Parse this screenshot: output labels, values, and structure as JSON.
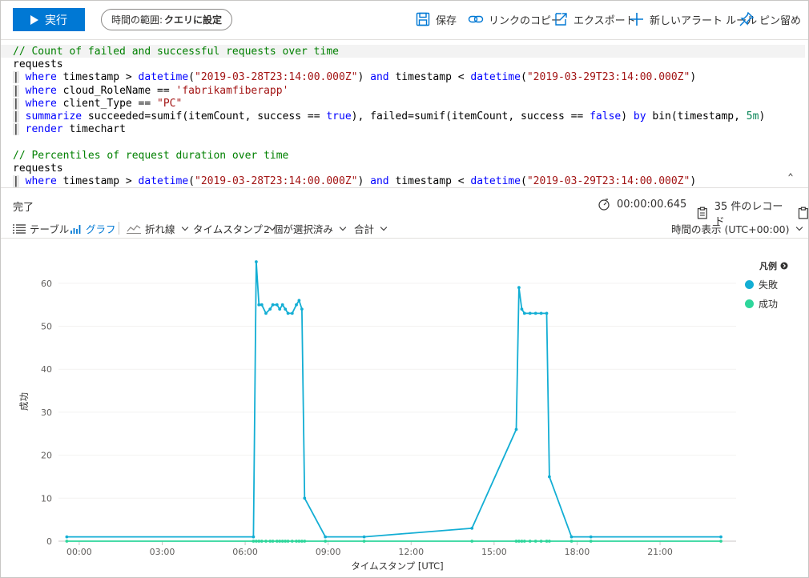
{
  "toolbar": {
    "run_label": "実行",
    "time_range_prefix": "時間の範囲:",
    "time_range_value": "クエリに設定",
    "save_label": "保存",
    "copy_link_label": "リンクのコピー",
    "export_label": "エクスポート",
    "new_alert_label": "新しいアラート ルール",
    "pin_label": "ピン留め"
  },
  "editor": {
    "lines": [
      "// Count of failed and successful requests over time",
      "requests",
      "| where timestamp > datetime(\"2019-03-28T23:14:00.000Z\") and timestamp < datetime(\"2019-03-29T23:14:00.000Z\")",
      "| where cloud_RoleName == 'fabrikamfiberapp'",
      "| where client_Type == \"PC\"",
      "| summarize succeeded=sumif(itemCount, success == true), failed=sumif(itemCount, success == false) by bin(timestamp, 5m)",
      "| render timechart",
      "",
      "// Percentiles of request duration over time",
      "requests",
      "| where timestamp > datetime(\"2019-03-28T23:14:00.000Z\") and timestamp < datetime(\"2019-03-29T23:14:00.000Z\")"
    ]
  },
  "status": {
    "state": "完了",
    "duration": "00:00:00.645",
    "records": "35 件のレコード"
  },
  "view": {
    "table_label": "テーブル",
    "chart_label": "グラフ",
    "chart_type": "折れ線",
    "x_column": "タイムスタンプ",
    "series_select": "2 個が選択済み",
    "aggregation": "合計",
    "time_display": "時間の表示 (UTC+00:00)"
  },
  "legend": {
    "title": "凡例"
  },
  "colors": {
    "accent": "#0078d4",
    "failed": "#13aed4",
    "succeeded": "#2ed69b"
  },
  "chart_data": {
    "type": "line",
    "xlabel": "タイムスタンプ [UTC]",
    "ylabel": "成功",
    "x_unit": "hours (UTC)",
    "xlim": [
      -0.75,
      23.75
    ],
    "ylim": [
      0,
      65
    ],
    "x_ticks": [
      "00:00",
      "03:00",
      "06:00",
      "09:00",
      "12:00",
      "15:00",
      "18:00",
      "21:00"
    ],
    "y_ticks": [
      "0",
      "10",
      "20",
      "30",
      "40",
      "50",
      "60"
    ],
    "legend_position": "top-right",
    "series": [
      {
        "name": "失敗",
        "color": "#13aed4",
        "points": [
          [
            -0.45,
            1
          ],
          [
            6.3,
            1
          ],
          [
            6.4,
            65
          ],
          [
            6.5,
            55
          ],
          [
            6.6,
            55
          ],
          [
            6.75,
            53
          ],
          [
            6.9,
            54
          ],
          [
            7.0,
            55
          ],
          [
            7.15,
            55
          ],
          [
            7.25,
            54
          ],
          [
            7.35,
            55
          ],
          [
            7.45,
            54
          ],
          [
            7.55,
            53
          ],
          [
            7.7,
            53
          ],
          [
            7.85,
            55
          ],
          [
            7.95,
            56
          ],
          [
            8.05,
            54
          ],
          [
            8.15,
            10
          ],
          [
            8.9,
            1
          ],
          [
            10.3,
            1
          ],
          [
            14.2,
            3
          ],
          [
            15.8,
            26
          ],
          [
            15.9,
            59
          ],
          [
            16.0,
            54
          ],
          [
            16.1,
            53
          ],
          [
            16.3,
            53
          ],
          [
            16.5,
            53
          ],
          [
            16.7,
            53
          ],
          [
            16.9,
            53
          ],
          [
            17.0,
            15
          ],
          [
            17.8,
            1
          ],
          [
            18.5,
            1
          ],
          [
            23.2,
            1
          ]
        ]
      },
      {
        "name": "成功",
        "color": "#2ed69b",
        "points": [
          [
            -0.45,
            0
          ],
          [
            6.3,
            0
          ],
          [
            6.4,
            0
          ],
          [
            6.5,
            0
          ],
          [
            6.6,
            0
          ],
          [
            6.75,
            0
          ],
          [
            6.9,
            0
          ],
          [
            7.0,
            0
          ],
          [
            7.15,
            0
          ],
          [
            7.25,
            0
          ],
          [
            7.35,
            0
          ],
          [
            7.45,
            0
          ],
          [
            7.55,
            0
          ],
          [
            7.7,
            0
          ],
          [
            7.85,
            0
          ],
          [
            7.95,
            0
          ],
          [
            8.05,
            0
          ],
          [
            8.15,
            0
          ],
          [
            8.9,
            0
          ],
          [
            10.3,
            0
          ],
          [
            14.2,
            0
          ],
          [
            15.8,
            0
          ],
          [
            15.9,
            0
          ],
          [
            16.0,
            0
          ],
          [
            16.1,
            0
          ],
          [
            16.3,
            0
          ],
          [
            16.5,
            0
          ],
          [
            16.7,
            0
          ],
          [
            16.9,
            0
          ],
          [
            17.0,
            0
          ],
          [
            17.8,
            0
          ],
          [
            18.5,
            0
          ],
          [
            23.2,
            0
          ]
        ]
      }
    ]
  }
}
